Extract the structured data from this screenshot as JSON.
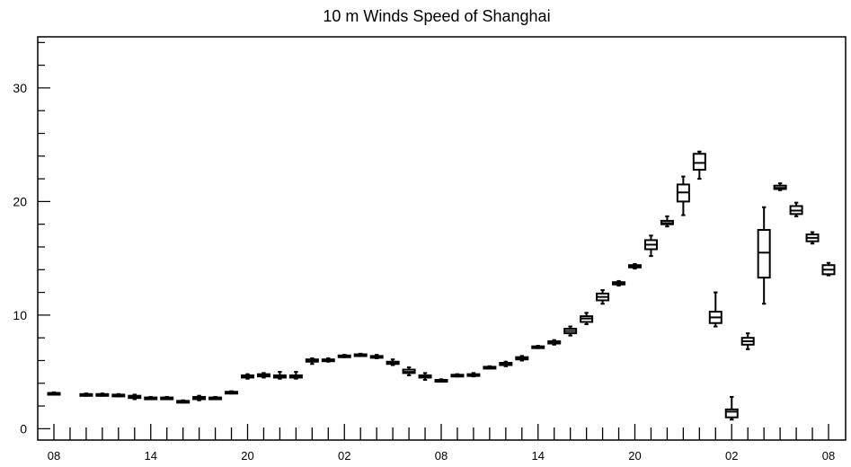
{
  "chart_data": {
    "type": "boxplot",
    "title": "10 m Winds Speed of Shanghai",
    "xlabel": "",
    "ylabel": "",
    "ylim": [
      -1,
      34.5
    ],
    "yticks": [
      0,
      10,
      20,
      30
    ],
    "xticks": [
      {
        "index": 0,
        "label": "08"
      },
      {
        "index": 6,
        "label": "14"
      },
      {
        "index": 12,
        "label": "20"
      },
      {
        "index": 18,
        "label": "02"
      },
      {
        "index": 24,
        "label": "08"
      },
      {
        "index": 30,
        "label": "14"
      },
      {
        "index": 36,
        "label": "20"
      },
      {
        "index": 42,
        "label": "02"
      },
      {
        "index": 48,
        "label": "08"
      }
    ],
    "n_positions": 49,
    "boxes": [
      {
        "x": 0,
        "min": 3.0,
        "q1": 3.05,
        "median": 3.1,
        "q3": 3.15,
        "max": 3.2
      },
      {
        "x": 2,
        "min": 2.9,
        "q1": 2.95,
        "median": 3.0,
        "q3": 3.05,
        "max": 3.1
      },
      {
        "x": 3,
        "min": 2.9,
        "q1": 2.95,
        "median": 3.0,
        "q3": 3.05,
        "max": 3.1
      },
      {
        "x": 4,
        "min": 2.85,
        "q1": 2.9,
        "median": 2.95,
        "q3": 3.0,
        "max": 3.05
      },
      {
        "x": 5,
        "min": 2.6,
        "q1": 2.7,
        "median": 2.8,
        "q3": 2.9,
        "max": 3.0
      },
      {
        "x": 6,
        "min": 2.6,
        "q1": 2.65,
        "median": 2.7,
        "q3": 2.75,
        "max": 2.8
      },
      {
        "x": 7,
        "min": 2.6,
        "q1": 2.65,
        "median": 2.7,
        "q3": 2.75,
        "max": 2.8
      },
      {
        "x": 8,
        "min": 2.3,
        "q1": 2.35,
        "median": 2.4,
        "q3": 2.45,
        "max": 2.5
      },
      {
        "x": 9,
        "min": 2.5,
        "q1": 2.6,
        "median": 2.7,
        "q3": 2.8,
        "max": 2.9
      },
      {
        "x": 10,
        "min": 2.6,
        "q1": 2.65,
        "median": 2.7,
        "q3": 2.75,
        "max": 2.8
      },
      {
        "x": 11,
        "min": 3.1,
        "q1": 3.15,
        "median": 3.2,
        "q3": 3.25,
        "max": 3.3
      },
      {
        "x": 12,
        "min": 4.4,
        "q1": 4.5,
        "median": 4.6,
        "q3": 4.7,
        "max": 4.8
      },
      {
        "x": 13,
        "min": 4.5,
        "q1": 4.6,
        "median": 4.7,
        "q3": 4.8,
        "max": 4.9
      },
      {
        "x": 14,
        "min": 4.4,
        "q1": 4.5,
        "median": 4.6,
        "q3": 4.7,
        "max": 5.0
      },
      {
        "x": 15,
        "min": 4.4,
        "q1": 4.5,
        "median": 4.6,
        "q3": 4.7,
        "max": 5.0
      },
      {
        "x": 16,
        "min": 5.7,
        "q1": 5.9,
        "median": 6.0,
        "q3": 6.1,
        "max": 6.2
      },
      {
        "x": 17,
        "min": 5.9,
        "q1": 6.0,
        "median": 6.05,
        "q3": 6.1,
        "max": 6.2
      },
      {
        "x": 18,
        "min": 6.3,
        "q1": 6.35,
        "median": 6.4,
        "q3": 6.45,
        "max": 6.5
      },
      {
        "x": 19,
        "min": 6.4,
        "q1": 6.45,
        "median": 6.5,
        "q3": 6.55,
        "max": 6.6
      },
      {
        "x": 20,
        "min": 6.2,
        "q1": 6.25,
        "median": 6.3,
        "q3": 6.4,
        "max": 6.5
      },
      {
        "x": 21,
        "min": 5.6,
        "q1": 5.7,
        "median": 5.8,
        "q3": 5.9,
        "max": 6.1
      },
      {
        "x": 22,
        "min": 4.7,
        "q1": 4.9,
        "median": 5.0,
        "q3": 5.2,
        "max": 5.4
      },
      {
        "x": 23,
        "min": 4.3,
        "q1": 4.5,
        "median": 4.6,
        "q3": 4.7,
        "max": 4.9
      },
      {
        "x": 24,
        "min": 4.15,
        "q1": 4.2,
        "median": 4.25,
        "q3": 4.3,
        "max": 4.35
      },
      {
        "x": 25,
        "min": 4.6,
        "q1": 4.65,
        "median": 4.7,
        "q3": 4.75,
        "max": 4.8
      },
      {
        "x": 26,
        "min": 4.6,
        "q1": 4.65,
        "median": 4.7,
        "q3": 4.8,
        "max": 4.9
      },
      {
        "x": 27,
        "min": 5.3,
        "q1": 5.35,
        "median": 5.4,
        "q3": 5.45,
        "max": 5.5
      },
      {
        "x": 28,
        "min": 5.5,
        "q1": 5.6,
        "median": 5.7,
        "q3": 5.8,
        "max": 5.9
      },
      {
        "x": 29,
        "min": 6.0,
        "q1": 6.1,
        "median": 6.2,
        "q3": 6.3,
        "max": 6.4
      },
      {
        "x": 30,
        "min": 7.1,
        "q1": 7.15,
        "median": 7.2,
        "q3": 7.25,
        "max": 7.3
      },
      {
        "x": 31,
        "min": 7.4,
        "q1": 7.5,
        "median": 7.6,
        "q3": 7.7,
        "max": 7.8
      },
      {
        "x": 32,
        "min": 8.2,
        "q1": 8.4,
        "median": 8.6,
        "q3": 8.8,
        "max": 9.0
      },
      {
        "x": 33,
        "min": 9.2,
        "q1": 9.4,
        "median": 9.7,
        "q3": 9.9,
        "max": 10.2
      },
      {
        "x": 34,
        "min": 11.0,
        "q1": 11.3,
        "median": 11.6,
        "q3": 11.9,
        "max": 12.2
      },
      {
        "x": 35,
        "min": 12.6,
        "q1": 12.7,
        "median": 12.8,
        "q3": 12.9,
        "max": 13.0
      },
      {
        "x": 36,
        "min": 14.1,
        "q1": 14.2,
        "median": 14.3,
        "q3": 14.4,
        "max": 14.5
      },
      {
        "x": 37,
        "min": 15.2,
        "q1": 15.8,
        "median": 16.2,
        "q3": 16.6,
        "max": 17.0
      },
      {
        "x": 38,
        "min": 17.8,
        "q1": 18.0,
        "median": 18.1,
        "q3": 18.3,
        "max": 18.7
      },
      {
        "x": 39,
        "min": 18.8,
        "q1": 20.0,
        "median": 20.8,
        "q3": 21.5,
        "max": 22.2
      },
      {
        "x": 40,
        "min": 22.0,
        "q1": 22.8,
        "median": 23.4,
        "q3": 24.2,
        "max": 24.4
      },
      {
        "x": 41,
        "min": 9.0,
        "q1": 9.3,
        "median": 9.8,
        "q3": 10.3,
        "max": 12.0
      },
      {
        "x": 42,
        "min": 0.8,
        "q1": 1.0,
        "median": 1.5,
        "q3": 1.7,
        "max": 2.8
      },
      {
        "x": 43,
        "min": 7.0,
        "q1": 7.4,
        "median": 7.7,
        "q3": 8.0,
        "max": 8.4
      },
      {
        "x": 44,
        "min": 11.0,
        "q1": 13.3,
        "median": 15.5,
        "q3": 17.5,
        "max": 19.5
      },
      {
        "x": 45,
        "min": 21.0,
        "q1": 21.1,
        "median": 21.2,
        "q3": 21.4,
        "max": 21.6
      },
      {
        "x": 46,
        "min": 18.7,
        "q1": 18.9,
        "median": 19.2,
        "q3": 19.6,
        "max": 19.9
      },
      {
        "x": 47,
        "min": 16.3,
        "q1": 16.5,
        "median": 16.8,
        "q3": 17.1,
        "max": 17.3
      },
      {
        "x": 48,
        "min": 13.5,
        "q1": 13.6,
        "median": 14.0,
        "q3": 14.4,
        "max": 14.6
      }
    ],
    "grid": false,
    "colors": {
      "box": "#000000",
      "background": "#ffffff"
    }
  }
}
